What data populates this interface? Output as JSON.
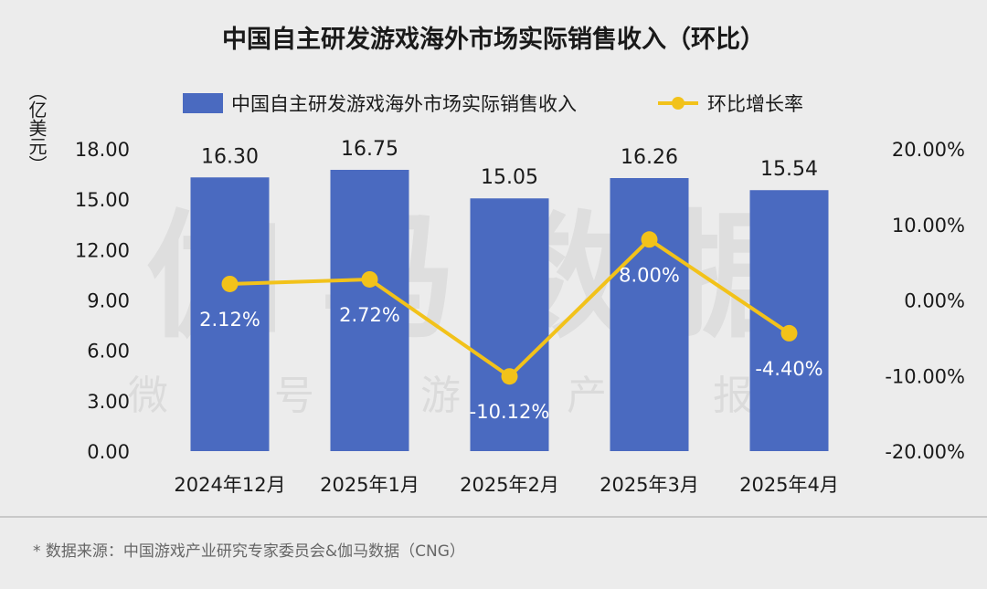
{
  "chart_data": {
    "type": "bar",
    "title": "中国自主研发游戏海外市场实际销售收入（环比）",
    "categories": [
      "2024年12月",
      "2025年1月",
      "2025年2月",
      "2025年3月",
      "2025年4月"
    ],
    "series": [
      {
        "name": "中国自主研发游戏海外市场实际销售收入",
        "kind": "bar",
        "axis": "left",
        "values": [
          16.3,
          16.75,
          15.05,
          16.26,
          15.54
        ],
        "labels": [
          "16.30",
          "16.75",
          "15.05",
          "16.26",
          "15.54"
        ],
        "color": "#4a6ac0"
      },
      {
        "name": "环比增长率",
        "kind": "line",
        "axis": "right",
        "values": [
          2.12,
          2.72,
          -10.12,
          8.0,
          -4.4
        ],
        "labels": [
          "2.12%",
          "2.72%",
          "-10.12%",
          "8.00%",
          "-4.40%"
        ],
        "color": "#f2c21a"
      }
    ],
    "left_axis": {
      "unit": "（亿美元）",
      "range": [
        0,
        18
      ],
      "ticks": [
        0,
        3,
        6,
        9,
        12,
        15,
        18
      ],
      "tick_labels": [
        "0.00",
        "3.00",
        "6.00",
        "9.00",
        "12.00",
        "15.00",
        "18.00"
      ]
    },
    "right_axis": {
      "range": [
        -20,
        20
      ],
      "ticks": [
        -20,
        -10,
        0,
        10,
        20
      ],
      "tick_labels": [
        "-20.00%",
        "-10.00%",
        "0.00%",
        "10.00%",
        "20.00%"
      ]
    },
    "legend_position": "top-center",
    "grid": false
  },
  "watermark": {
    "main": "伽马数据",
    "sub": "微信号：游戏产业报告"
  },
  "source": "* 数据来源：中国游戏产业研究专家委员会&伽马数据（CNG）",
  "colors": {
    "background": "#ececec",
    "bar": "#4a6ac0",
    "line": "#f2c21a",
    "divider": "#bdbdbd"
  }
}
